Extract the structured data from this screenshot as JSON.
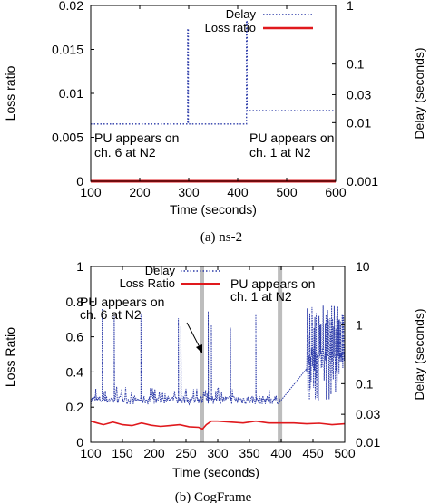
{
  "chart_data": [
    {
      "type": "line",
      "caption": "(a)  ns-2",
      "xlabel": "Time (seconds)",
      "ylabel": "Loss ratio",
      "y2label": "Delay (seconds)",
      "xlim": [
        100,
        600
      ],
      "ylim": [
        0,
        0.02
      ],
      "y2lim": [
        0.001,
        1
      ],
      "y2scale": "log",
      "x_ticks": [
        "100",
        "200",
        "300",
        "400",
        "500",
        "600"
      ],
      "y_ticks": [
        "0",
        "0.005",
        "0.01",
        "0.015",
        "0.02"
      ],
      "y2_ticks": [
        "0.001",
        "0.01",
        "0.03",
        "0.1",
        "1"
      ],
      "legend_position": "top-right",
      "grid": false,
      "series": [
        {
          "name": "Delay",
          "axis": "right",
          "color": "#2b3aa8",
          "style": "dotted",
          "x": [
            100,
            298,
            298,
            299,
            299,
            300,
            300,
            418,
            418,
            419,
            419,
            420,
            420,
            600
          ],
          "y": [
            0.0095,
            0.0095,
            0.4,
            0.4,
            0.0095,
            0.0095,
            0.0095,
            0.0095,
            0.55,
            0.55,
            0.016,
            0.016,
            0.016,
            0.016
          ]
        },
        {
          "name": "Loss ratio",
          "axis": "left",
          "color": "#e0191d",
          "style": "solid",
          "x": [
            100,
            600
          ],
          "y": [
            0,
            0
          ]
        }
      ],
      "annotations": [
        {
          "lines": [
            "PU appears on",
            "ch. 6 at N2"
          ]
        },
        {
          "lines": [
            "PU appears on",
            "ch. 1 at N2"
          ]
        }
      ]
    },
    {
      "type": "line",
      "caption": "(b)  CogFrame",
      "xlabel": "Time (seconds)",
      "ylabel": "Loss Ratio",
      "y2label": "Delay (seconds)",
      "xlim": [
        100,
        500
      ],
      "ylim": [
        0,
        1
      ],
      "y2lim": [
        0.01,
        10
      ],
      "y2scale": "log",
      "x_ticks": [
        "100",
        "150",
        "200",
        "250",
        "300",
        "350",
        "400",
        "450",
        "500"
      ],
      "y_ticks": [
        "0",
        "0.2",
        "0.4",
        "0.6",
        "0.8",
        "1"
      ],
      "y2_ticks": [
        "0.01",
        "0.03",
        "0.1",
        "1",
        "10"
      ],
      "legend_position": "top",
      "grid": false,
      "highlight_x": [
        275,
        398
      ],
      "series": [
        {
          "name": "Delay",
          "axis": "right",
          "color": "#2b3aa8",
          "style": "dotted",
          "noise_base": 0.052,
          "spikes": [
            {
              "x": 118,
              "y": 1.9
            },
            {
              "x": 137,
              "y": 1.4
            },
            {
              "x": 179,
              "y": 1.6
            },
            {
              "x": 238,
              "y": 1.3
            },
            {
              "x": 242,
              "y": 0.95
            },
            {
              "x": 285,
              "y": 1.7
            },
            {
              "x": 290,
              "y": 1.0
            },
            {
              "x": 320,
              "y": 0.9
            },
            {
              "x": 360,
              "y": 1.5
            }
          ],
          "gap": [
            398,
            440
          ],
          "burst": [
            440,
            500
          ]
        },
        {
          "name": "Loss Ratio",
          "axis": "left",
          "color": "#e0191d",
          "style": "solid",
          "x": [
            100,
            110,
            120,
            135,
            150,
            165,
            180,
            195,
            210,
            225,
            240,
            255,
            270,
            276,
            282,
            290,
            300,
            320,
            340,
            360,
            380,
            400,
            420,
            440,
            460,
            480,
            500
          ],
          "y": [
            0.12,
            0.11,
            0.1,
            0.115,
            0.1,
            0.095,
            0.11,
            0.097,
            0.09,
            0.095,
            0.1,
            0.088,
            0.085,
            0.075,
            0.1,
            0.12,
            0.12,
            0.115,
            0.11,
            0.12,
            0.11,
            0.11,
            0.11,
            0.105,
            0.108,
            0.1,
            0.105
          ]
        }
      ],
      "annotations": [
        {
          "lines": [
            "PU appears on",
            "ch. 6 at N2"
          ]
        },
        {
          "lines": [
            "PU appears on",
            "ch. 1 at N2"
          ]
        }
      ]
    }
  ]
}
